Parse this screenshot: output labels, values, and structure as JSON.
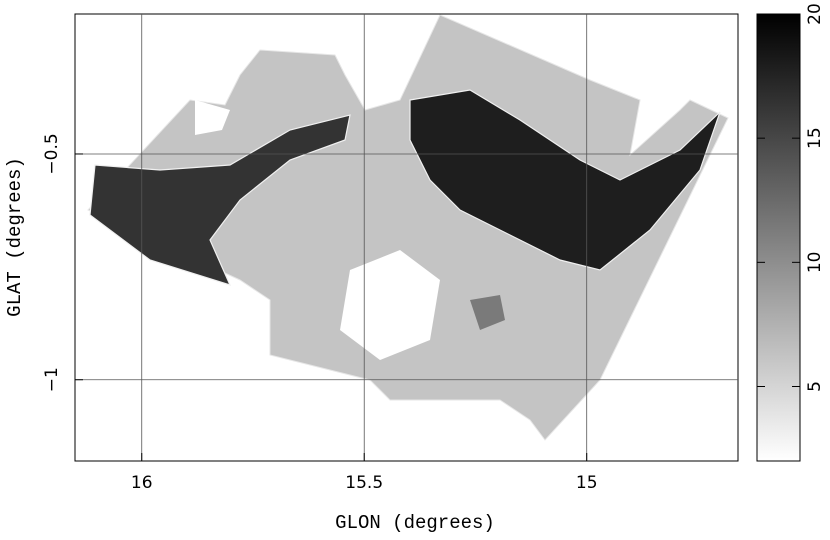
{
  "chart_data": {
    "type": "image",
    "x_label": "GLON (degrees)",
    "y_label": "GLAT (degrees)",
    "xlim": [
      16.15,
      14.66
    ],
    "xticks": [
      16,
      15.5,
      15
    ],
    "ylim": [
      -1.18,
      -0.19
    ],
    "yticks": [
      {
        "value": -0.5,
        "label": "−0.5"
      },
      {
        "value": -1,
        "label": "−1"
      }
    ],
    "grid": true,
    "colorbar": {
      "lim": [
        2,
        20
      ],
      "ticks": [
        5,
        10,
        15,
        20
      ],
      "colors": [
        "#ffffff",
        "#000000"
      ]
    }
  }
}
